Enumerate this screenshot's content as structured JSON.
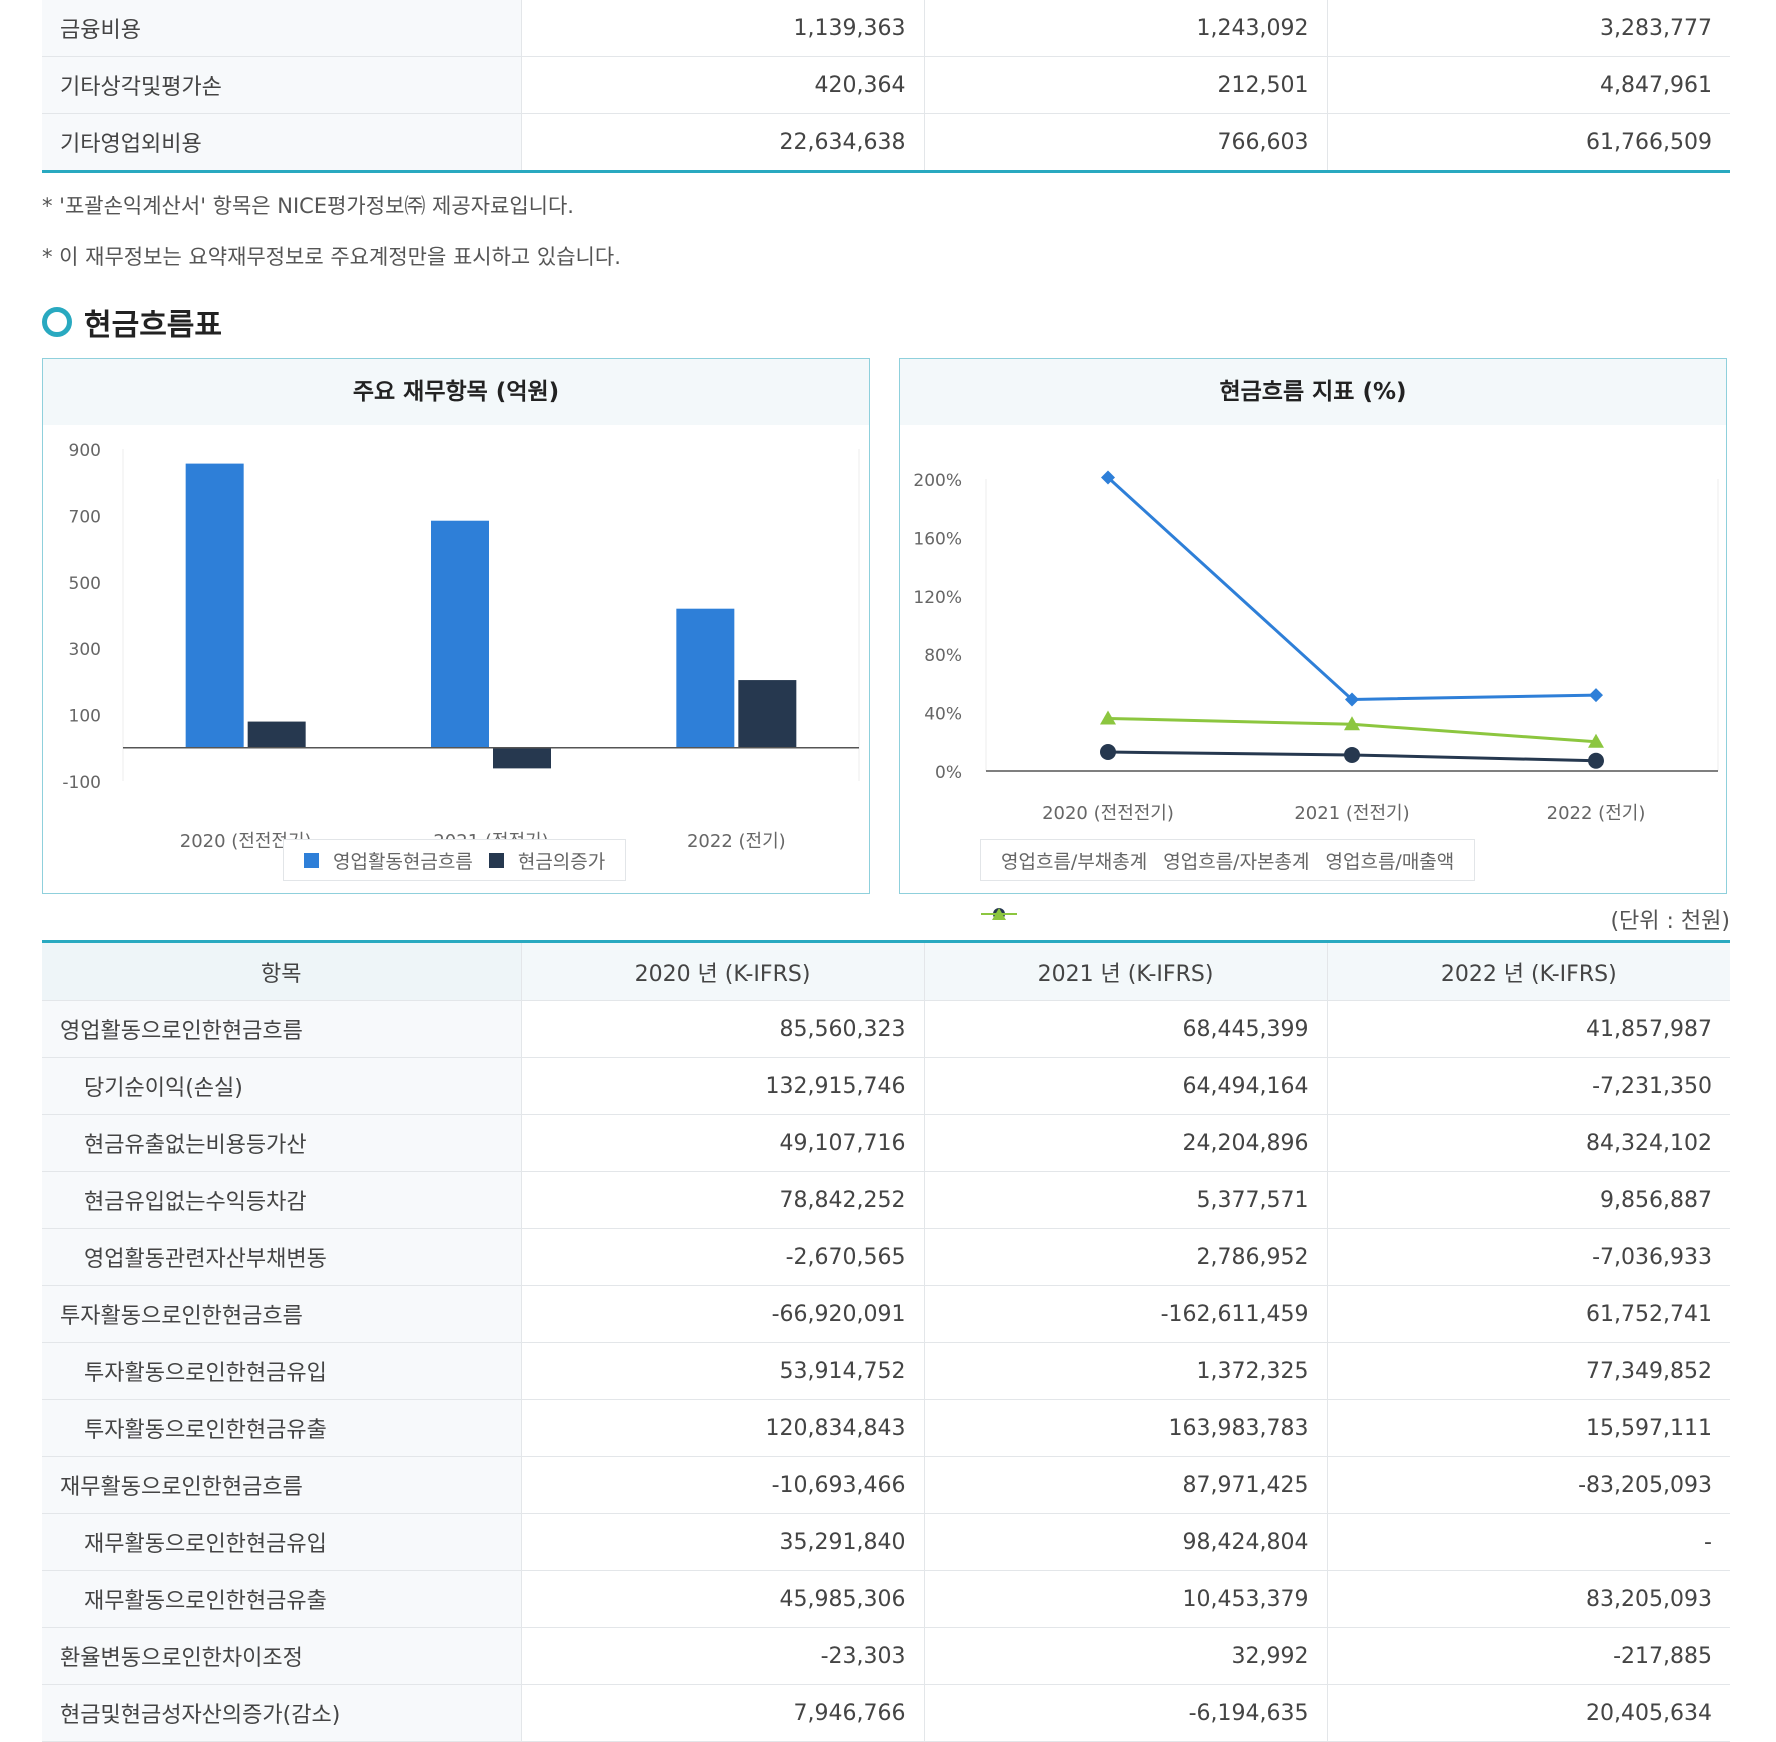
{
  "top_rows": [
    {
      "label": "금융비용",
      "v2020": "1,139,363",
      "v2021": "1,243,092",
      "v2022": "3,283,777",
      "indent": false
    },
    {
      "label": "기타상각및평가손",
      "v2020": "420,364",
      "v2021": "212,501",
      "v2022": "4,847,961",
      "indent": false
    },
    {
      "label": "기타영업외비용",
      "v2020": "22,634,638",
      "v2021": "766,603",
      "v2022": "61,766,509",
      "indent": false
    }
  ],
  "notes": [
    "* '포괄손익계산서' 항목은 NICE평가정보㈜ 제공자료입니다.",
    "* 이 재무정보는 요약재무정보로 주요계정만을 표시하고 있습니다."
  ],
  "section_title": "현금흐름표",
  "colors": {
    "bar_operating": "#2e7fd8",
    "bar_cash": "#26384f",
    "line_debt": "#2e7fd8",
    "line_capital": "#26384f",
    "line_sales": "#8cc63f",
    "accent": "#29a9c0"
  },
  "chart_data": [
    {
      "type": "bar",
      "title": "주요 재무항목 (억원)",
      "categories": [
        "2020 (전전전기)",
        "2021 (전전기)",
        "2022 (전기)"
      ],
      "series": [
        {
          "name": "영업활동현금흐름",
          "values": [
            856,
            684,
            419
          ]
        },
        {
          "name": "현금의증가",
          "values": [
            79,
            -62,
            204
          ]
        }
      ],
      "y_ticks": [
        "900",
        "700",
        "500",
        "300",
        "100",
        "-100"
      ],
      "ylim": [
        -100,
        900
      ],
      "legend": "bottom"
    },
    {
      "type": "line",
      "title": "현금흐름 지표 (%)",
      "categories": [
        "2020 (전전전기)",
        "2021 (전전기)",
        "2022 (전기)"
      ],
      "series": [
        {
          "name": "영업흐름/부채총계",
          "values": [
            201,
            49,
            52
          ],
          "marker": "diamond"
        },
        {
          "name": "영업흐름/자본총계",
          "values": [
            13,
            11,
            7
          ],
          "marker": "circle"
        },
        {
          "name": "영업흐름/매출액",
          "values": [
            36,
            32,
            20
          ],
          "marker": "triangle"
        }
      ],
      "y_ticks": [
        "200%",
        "160%",
        "120%",
        "80%",
        "40%",
        "0%"
      ],
      "ylim": [
        0,
        200
      ],
      "legend": "bottom"
    }
  ],
  "unit_label": "(단위 : 천원)",
  "cf_headers": [
    "항목",
    "2020 년 (K-IFRS)",
    "2021 년 (K-IFRS)",
    "2022 년 (K-IFRS)"
  ],
  "cf_rows": [
    {
      "label": "영업활동으로인한현금흐름",
      "v2020": "85,560,323",
      "v2021": "68,445,399",
      "v2022": "41,857,987",
      "indent": false
    },
    {
      "label": "당기순이익(손실)",
      "v2020": "132,915,746",
      "v2021": "64,494,164",
      "v2022": "-7,231,350",
      "indent": true
    },
    {
      "label": "현금유출없는비용등가산",
      "v2020": "49,107,716",
      "v2021": "24,204,896",
      "v2022": "84,324,102",
      "indent": true
    },
    {
      "label": "현금유입없는수익등차감",
      "v2020": "78,842,252",
      "v2021": "5,377,571",
      "v2022": "9,856,887",
      "indent": true
    },
    {
      "label": "영업활동관련자산부채변동",
      "v2020": "-2,670,565",
      "v2021": "2,786,952",
      "v2022": "-7,036,933",
      "indent": true
    },
    {
      "label": "투자활동으로인한현금흐름",
      "v2020": "-66,920,091",
      "v2021": "-162,611,459",
      "v2022": "61,752,741",
      "indent": false
    },
    {
      "label": "투자활동으로인한현금유입",
      "v2020": "53,914,752",
      "v2021": "1,372,325",
      "v2022": "77,349,852",
      "indent": true
    },
    {
      "label": "투자활동으로인한현금유출",
      "v2020": "120,834,843",
      "v2021": "163,983,783",
      "v2022": "15,597,111",
      "indent": true
    },
    {
      "label": "재무활동으로인한현금흐름",
      "v2020": "-10,693,466",
      "v2021": "87,971,425",
      "v2022": "-83,205,093",
      "indent": false
    },
    {
      "label": "재무활동으로인한현금유입",
      "v2020": "35,291,840",
      "v2021": "98,424,804",
      "v2022": "-",
      "indent": true
    },
    {
      "label": "재무활동으로인한현금유출",
      "v2020": "45,985,306",
      "v2021": "10,453,379",
      "v2022": "83,205,093",
      "indent": true
    },
    {
      "label": "환율변동으로인한차이조정",
      "v2020": "-23,303",
      "v2021": "32,992",
      "v2022": "-217,885",
      "indent": false
    },
    {
      "label": "현금및현금성자산의증가(감소)",
      "v2020": "7,946,766",
      "v2021": "-6,194,635",
      "v2022": "20,405,634",
      "indent": false
    }
  ]
}
